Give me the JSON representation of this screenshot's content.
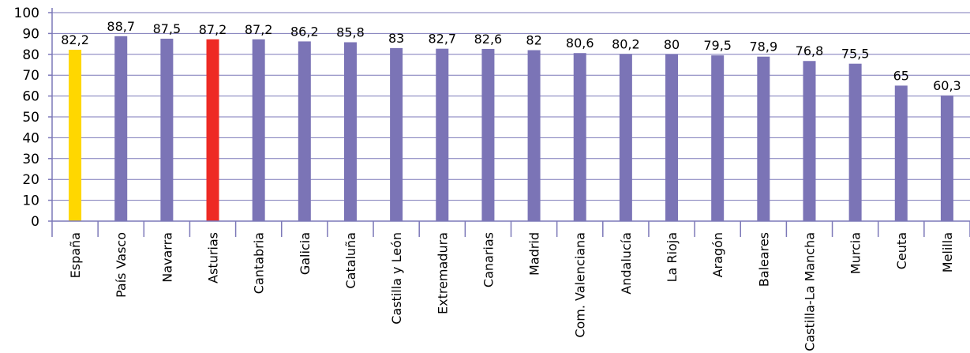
{
  "chart_data": {
    "type": "bar",
    "title": "",
    "xlabel": "",
    "ylabel": "",
    "ylim": [
      0,
      100
    ],
    "yticks": [
      0,
      10,
      20,
      30,
      40,
      50,
      60,
      70,
      80,
      90,
      100
    ],
    "grid": true,
    "legend": "none",
    "categories": [
      "España",
      "País Vasco",
      "Navarra",
      "Asturias",
      "Cantabria",
      "Galicia",
      "Cataluña",
      "Castilla y León",
      "Extremadura",
      "Canarias",
      "Madrid",
      "Com. Valenciana",
      "Andalucía",
      "La Rioja",
      "Aragón",
      "Baleares",
      "Castilla-La Mancha",
      "Murcia",
      "Ceuta",
      "Melilla"
    ],
    "values": [
      82.2,
      88.7,
      87.5,
      87.2,
      87.2,
      86.2,
      85.8,
      83,
      82.7,
      82.6,
      82,
      80.6,
      80.2,
      80,
      79.5,
      78.9,
      76.8,
      75.5,
      65,
      60.3
    ],
    "value_labels": [
      "82,2",
      "88,7",
      "87,5",
      "87,2",
      "87,2",
      "86,2",
      "85,8",
      "83",
      "82,7",
      "82,6",
      "82",
      "80,6",
      "80,2",
      "80",
      "79,5",
      "78,9",
      "76,8",
      "75,5",
      "65",
      "60,3"
    ],
    "bar_colors": [
      "#ffd700",
      "#7b74b6",
      "#7b74b6",
      "#ee2a24",
      "#7b74b6",
      "#7b74b6",
      "#7b74b6",
      "#7b74b6",
      "#7b74b6",
      "#7b74b6",
      "#7b74b6",
      "#7b74b6",
      "#7b74b6",
      "#7b74b6",
      "#7b74b6",
      "#7b74b6",
      "#7b74b6",
      "#7b74b6",
      "#7b74b6",
      "#7b74b6"
    ],
    "grid_color": "#7c78b8"
  }
}
